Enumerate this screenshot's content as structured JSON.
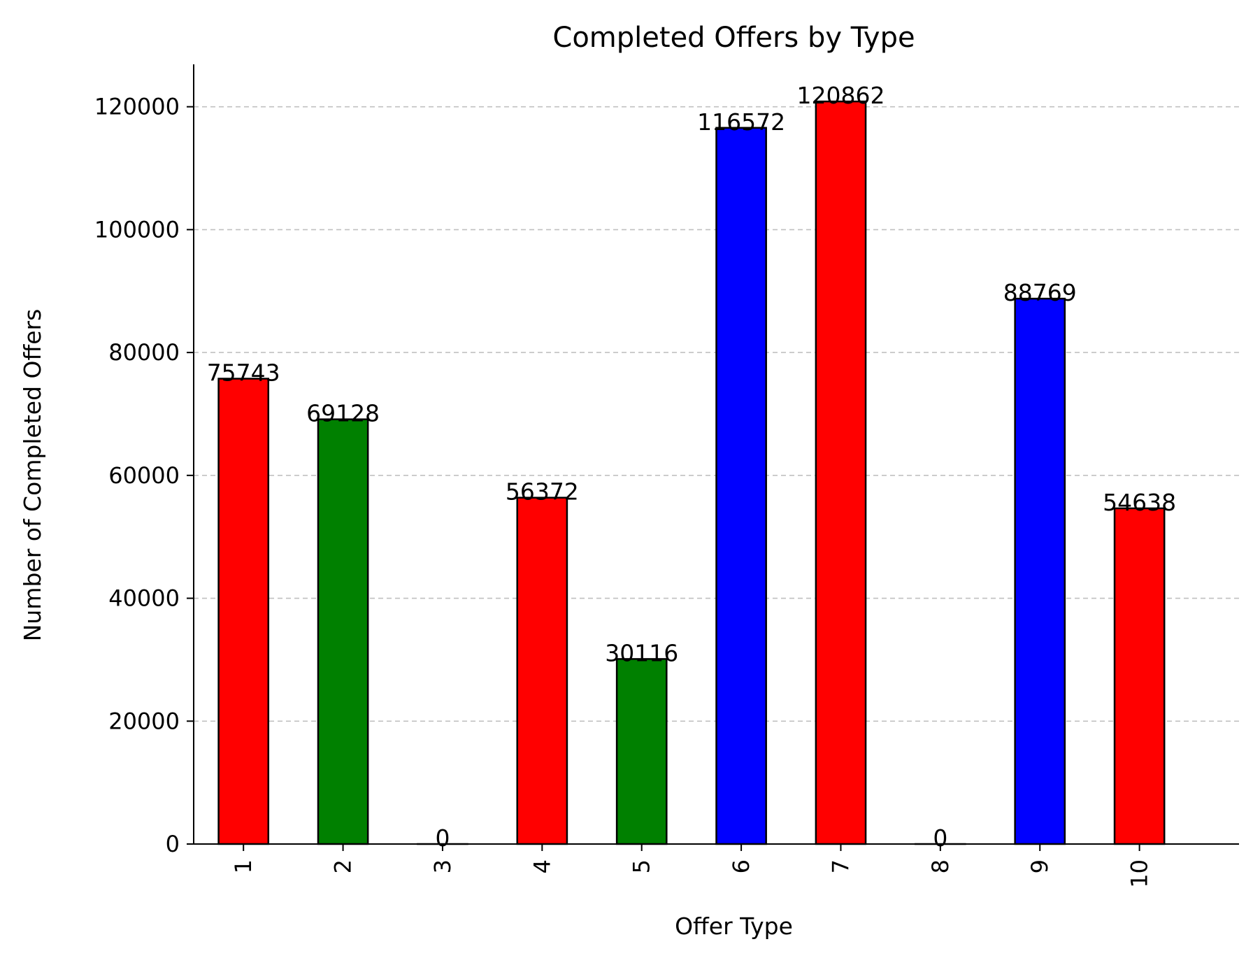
{
  "chart_data": {
    "type": "bar",
    "title": "Completed Offers by Type",
    "xlabel": "Offer Type",
    "ylabel": "Number of Completed Offers",
    "categories": [
      "1",
      "2",
      "3",
      "4",
      "5",
      "6",
      "7",
      "8",
      "9",
      "10"
    ],
    "values": [
      75743,
      69128,
      0,
      56372,
      30116,
      116572,
      120862,
      0,
      88769,
      54638
    ],
    "data_labels": [
      "75743",
      "69128",
      "0",
      "56372",
      "30116",
      "116572",
      "120862",
      "0",
      "88769",
      "54638"
    ],
    "bar_colors": [
      "#ff0000",
      "#008000",
      "#0000ff",
      "#ff0000",
      "#008000",
      "#0000ff",
      "#ff0000",
      "#008000",
      "#0000ff",
      "#ff0000"
    ],
    "edge_color": "#000000",
    "yticks": [
      0,
      20000,
      40000,
      60000,
      80000,
      100000,
      120000
    ],
    "ytick_labels": [
      "0",
      "20000",
      "40000",
      "60000",
      "80000",
      "100000",
      "120000"
    ],
    "ylim": [
      0,
      126905
    ],
    "grid": "y-dashed",
    "x_tick_rotation": "vertical"
  }
}
